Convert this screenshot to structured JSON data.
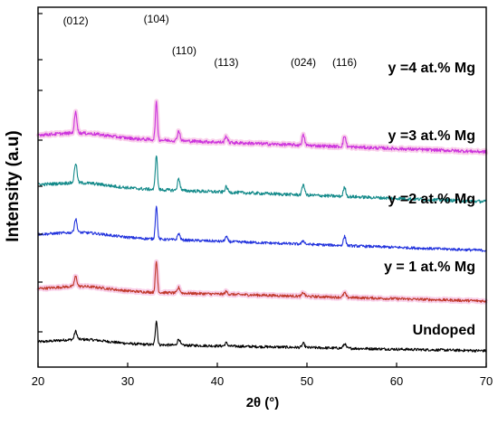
{
  "chart_data": {
    "type": "line",
    "xlabel": "2θ (°)",
    "ylabel": "Intensity (a.u)",
    "xlim": [
      20,
      70
    ],
    "x_ticks": [
      20,
      30,
      40,
      50,
      60,
      70
    ],
    "y_ticks_labeled": false,
    "grid": false,
    "peak_positions": [
      24.2,
      33.2,
      35.7,
      41.0,
      49.6,
      54.2
    ],
    "peak_labels": [
      {
        "text": "(012)",
        "x": 24.2
      },
      {
        "text": "(104)",
        "x": 33.2
      },
      {
        "text": "(110)",
        "x": 35.7
      },
      {
        "text": "(113)",
        "x": 41.0
      },
      {
        "text": "(024)",
        "x": 49.6
      },
      {
        "text": "(116)",
        "x": 54.2
      }
    ],
    "series": [
      {
        "name": "Undoped",
        "color": "#000000",
        "offset": 0,
        "baseline_start": 0.9,
        "baseline_end": 0.0,
        "noise": 0.05,
        "peaks": [
          0.9,
          2.7,
          0.7,
          0.35,
          0.45,
          0.5
        ]
      },
      {
        "name": "y = 1 at.% Mg",
        "color": "#c0392b",
        "offset": 5.5,
        "baseline_start": 1.3,
        "baseline_end": 0.0,
        "noise": 0.05,
        "peaks": [
          1.1,
          3.4,
          0.6,
          0.3,
          0.4,
          0.5
        ],
        "halo": "#f4a9d8"
      },
      {
        "name": "y =2 at.% Mg",
        "color": "#2233dd",
        "offset": 11.1,
        "baseline_start": 1.7,
        "baseline_end": 0.0,
        "noise": 0.05,
        "peaks": [
          1.5,
          3.7,
          0.7,
          0.5,
          0.4,
          1.0
        ]
      },
      {
        "name": "y =3 at.% Mg",
        "color": "#138a8a",
        "offset": 16.5,
        "baseline_start": 1.8,
        "baseline_end": 0.0,
        "noise": 0.06,
        "peaks": [
          2.2,
          3.9,
          1.3,
          0.6,
          1.2,
          1.0
        ]
      },
      {
        "name": "y =4 at.% Mg",
        "color": "#cc33dd",
        "offset": 22.0,
        "baseline_start": 1.8,
        "baseline_end": 0.0,
        "noise": 0.06,
        "peaks": [
          2.3,
          4.1,
          1.1,
          0.7,
          1.1,
          1.2
        ],
        "halo": "#f4a9d8"
      }
    ]
  }
}
